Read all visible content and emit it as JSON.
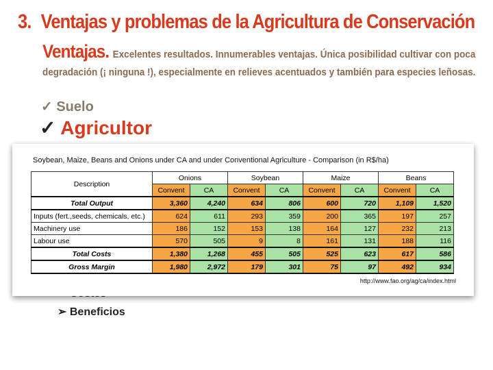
{
  "header": {
    "number": "3.",
    "title": "Ventajas y problemas de la Agricultura de Conservación"
  },
  "intro": {
    "lead": "Ventajas.",
    "text": "Excelentes resultados. Innumerables ventajas. Única posibilidad cultivar con poca degradación (¡ ninguna !), especialmente en relieves acentuados y también para especies leñosas."
  },
  "bullets": [
    {
      "marker": "✓",
      "text": "Suelo"
    },
    {
      "marker": "✓",
      "text": "Agricultor"
    }
  ],
  "subbullets": [
    {
      "marker": "➢",
      "text": "Costes"
    },
    {
      "marker": "➢",
      "text": "Beneficios"
    }
  ],
  "table": {
    "caption": "Soybean, Maize, Beans and Onions under CA and under Conventional Agriculture - Comparison (in R$/ha)",
    "description_header": "Description",
    "groups": [
      "Onions",
      "Soybean",
      "Maize",
      "Beans"
    ],
    "subheaders": [
      "Convent",
      "CA",
      "Convent",
      "CA",
      "Convent",
      "CA",
      "Convent",
      "CA"
    ],
    "rows": [
      [
        "Total Output",
        "3,360",
        "4,240",
        "634",
        "806",
        "600",
        "720",
        "1,109",
        "1,520"
      ],
      [
        "Inputs (fert.,seeds, chemicals, etc.)",
        "624",
        "611",
        "293",
        "359",
        "200",
        "365",
        "197",
        "257"
      ],
      [
        "Machinery use",
        "186",
        "152",
        "153",
        "138",
        "164",
        "127",
        "232",
        "213"
      ],
      [
        "Labour use",
        "570",
        "505",
        "9",
        "8",
        "161",
        "131",
        "188",
        "116"
      ],
      [
        "Total  Costs",
        "1,380",
        "1,268",
        "455",
        "505",
        "525",
        "623",
        "617",
        "586"
      ],
      [
        "Gross Margin",
        "1,980",
        "2,972",
        "179",
        "301",
        "75",
        "97",
        "492",
        "934"
      ]
    ],
    "source": "http://www.fao.org/ag/ca/index.html"
  }
}
